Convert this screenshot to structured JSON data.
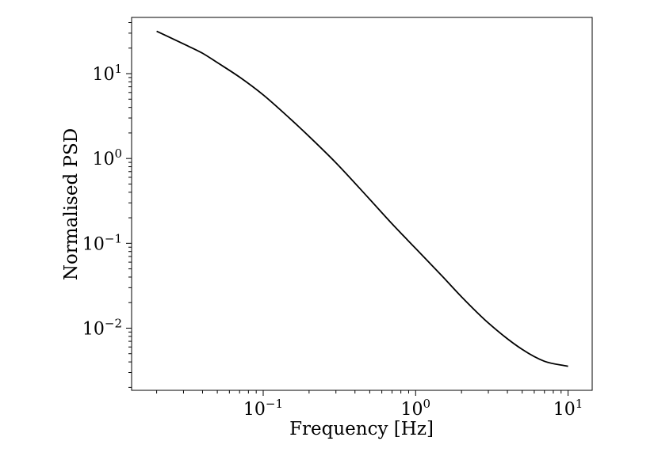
{
  "chart_data": {
    "type": "line",
    "xscale": "log",
    "yscale": "log",
    "xlim": [
      0.0137,
      14.4
    ],
    "ylim": [
      0.00185,
      46
    ],
    "xlabel": "Frequency [Hz]",
    "ylabel": "Normalised PSD",
    "grid": false,
    "xticks": [
      {
        "value": 0.1,
        "base": "10",
        "exp": "−1"
      },
      {
        "value": 1,
        "base": "10",
        "exp": "0"
      },
      {
        "value": 10,
        "base": "10",
        "exp": "1"
      }
    ],
    "yticks": [
      {
        "value": 0.01,
        "base": "10",
        "exp": "−2"
      },
      {
        "value": 0.1,
        "base": "10",
        "exp": "−1"
      },
      {
        "value": 1,
        "base": "10",
        "exp": "0"
      },
      {
        "value": 10,
        "base": "10",
        "exp": "1"
      }
    ],
    "series": [
      {
        "x": [
          0.02,
          0.03,
          0.04,
          0.05,
          0.07,
          0.1,
          0.15,
          0.2,
          0.3,
          0.5,
          0.7,
          1.0,
          1.5,
          2.0,
          3.0,
          5.0,
          7.0,
          10.0
        ],
        "y": [
          31.6,
          22.4,
          17.4,
          13.5,
          9.1,
          5.62,
          2.95,
          1.82,
          0.89,
          0.33,
          0.17,
          0.0871,
          0.0407,
          0.0234,
          0.0115,
          0.00562,
          0.00407,
          0.00355
        ]
      }
    ]
  }
}
